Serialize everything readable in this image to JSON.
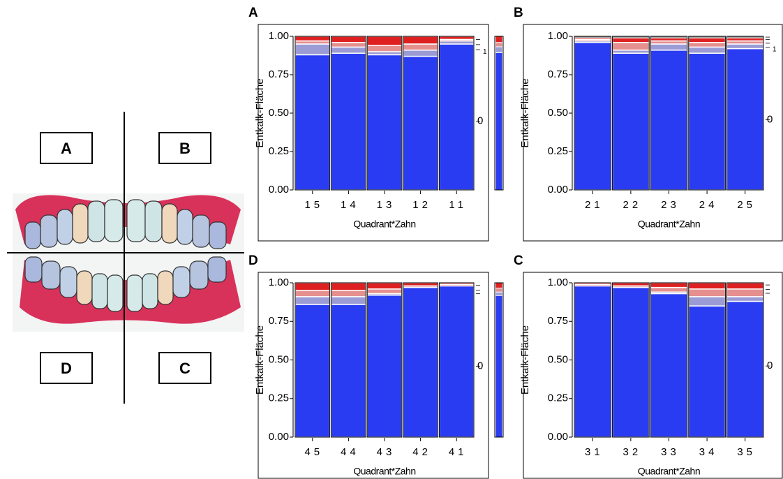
{
  "diagram": {
    "labels": [
      "A",
      "B",
      "D",
      "C"
    ]
  },
  "chart_data": [
    {
      "type": "stacked-bar",
      "title": "A",
      "x_label": "Quadrant*Zahn",
      "y_label": "Entkalk-Fläche",
      "categories": [
        "15",
        "14",
        "13",
        "12",
        "11"
      ],
      "series": [
        {
          "name": "0",
          "color": "#2a3cf2",
          "values": [
            0.88,
            0.89,
            0.88,
            0.87,
            0.95
          ]
        },
        {
          "name": "1",
          "color": "#9b9bd6",
          "values": [
            0.07,
            0.04,
            0.02,
            0.04,
            0.02
          ]
        },
        {
          "name": null,
          "color": "#e58f8f",
          "values": [
            0.02,
            0.03,
            0.04,
            0.04,
            0.01
          ]
        },
        {
          "name": null,
          "color": "#de2020",
          "values": [
            0.03,
            0.04,
            0.06,
            0.05,
            0.02
          ]
        }
      ],
      "ylim": [
        0,
        1
      ],
      "yticks": [
        {
          "value": 0,
          "label": "0.00"
        },
        {
          "value": 0.25,
          "label": "0.25"
        },
        {
          "value": 0.5,
          "label": "0.50"
        },
        {
          "value": 0.75,
          "label": "0.75"
        },
        {
          "value": 1,
          "label": "1.00"
        }
      ]
    },
    {
      "type": "stacked-bar",
      "title": "B",
      "x_label": "Quadrant*Zahn",
      "y_label": "Entkalk-Fläche",
      "categories": [
        "21",
        "22",
        "23",
        "24",
        "25"
      ],
      "series": [
        {
          "name": "0",
          "color": "#2a3cf2",
          "values": [
            0.96,
            0.89,
            0.91,
            0.89,
            0.92
          ]
        },
        {
          "name": "1",
          "color": "#9b9bd6",
          "values": [
            0.01,
            0.02,
            0.04,
            0.04,
            0.03
          ]
        },
        {
          "name": null,
          "color": "#e58f8f",
          "values": [
            0.01,
            0.05,
            0.02,
            0.03,
            0.02
          ]
        },
        {
          "name": null,
          "color": "#de2020",
          "values": [
            0.01,
            0.03,
            0.02,
            0.03,
            0.02
          ]
        },
        {
          "name": null,
          "color": "#151515",
          "values": [
            0.01,
            0.01,
            0.01,
            0.01,
            0.01
          ]
        }
      ],
      "ylim": [
        0,
        1
      ],
      "yticks": [
        {
          "value": 0,
          "label": "0.00"
        },
        {
          "value": 0.25,
          "label": "0.25"
        },
        {
          "value": 0.5,
          "label": "0.50"
        },
        {
          "value": 0.75,
          "label": "0.75"
        },
        {
          "value": 1,
          "label": "1.00"
        }
      ]
    },
    {
      "type": "stacked-bar",
      "title": "D",
      "x_label": "Quadrant*Zahn",
      "y_label": "Entkalk-Fläche",
      "categories": [
        "45",
        "44",
        "43",
        "42",
        "41"
      ],
      "series": [
        {
          "name": "0",
          "color": "#2a3cf2",
          "values": [
            0.86,
            0.86,
            0.92,
            0.97,
            0.98
          ]
        },
        {
          "name": null,
          "color": "#9b9bd6",
          "values": [
            0.05,
            0.05,
            0.01,
            0.0,
            0.0
          ]
        },
        {
          "name": null,
          "color": "#e58f8f",
          "values": [
            0.04,
            0.04,
            0.03,
            0.01,
            0.01
          ]
        },
        {
          "name": null,
          "color": "#de2020",
          "values": [
            0.05,
            0.05,
            0.04,
            0.02,
            0.01
          ]
        }
      ],
      "ylim": [
        0,
        1
      ],
      "yticks": [
        {
          "value": 0,
          "label": "0.00"
        },
        {
          "value": 0.25,
          "label": "0.25"
        },
        {
          "value": 0.5,
          "label": "0.50"
        },
        {
          "value": 0.75,
          "label": "0.75"
        },
        {
          "value": 1,
          "label": "1.00"
        }
      ]
    },
    {
      "type": "stacked-bar",
      "title": "C",
      "x_label": "Quadrant*Zahn",
      "y_label": "Entkalk-Fläche",
      "categories": [
        "31",
        "32",
        "33",
        "34",
        "35"
      ],
      "series": [
        {
          "name": "0",
          "color": "#2a3cf2",
          "values": [
            0.98,
            0.97,
            0.93,
            0.85,
            0.88
          ]
        },
        {
          "name": null,
          "color": "#9b9bd6",
          "values": [
            0.0,
            0.0,
            0.01,
            0.06,
            0.03
          ]
        },
        {
          "name": null,
          "color": "#e58f8f",
          "values": [
            0.01,
            0.01,
            0.03,
            0.05,
            0.05
          ]
        },
        {
          "name": null,
          "color": "#de2020",
          "values": [
            0.01,
            0.02,
            0.03,
            0.04,
            0.04
          ]
        }
      ],
      "ylim": [
        0,
        1
      ],
      "yticks": [
        {
          "value": 0,
          "label": "0.00"
        },
        {
          "value": 0.25,
          "label": "0.25"
        },
        {
          "value": 0.5,
          "label": "0.50"
        },
        {
          "value": 0.75,
          "label": "0.75"
        },
        {
          "value": 1,
          "label": "1.00"
        }
      ]
    }
  ]
}
